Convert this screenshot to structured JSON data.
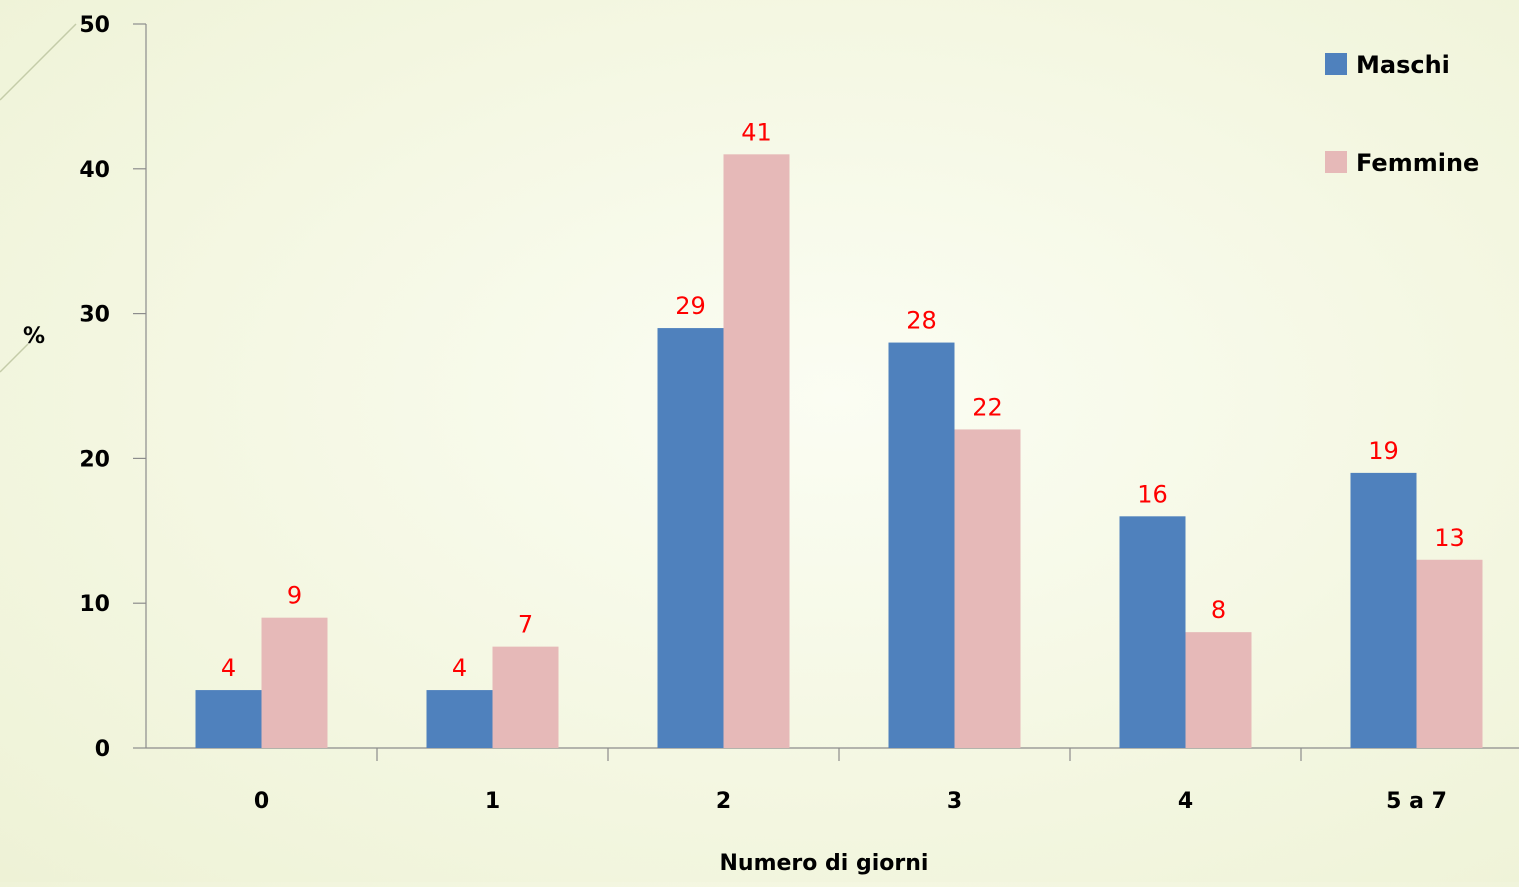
{
  "chart_data": {
    "type": "bar",
    "categories": [
      "0",
      "1",
      "2",
      "3",
      "4",
      "5 a 7"
    ],
    "series": [
      {
        "name": "Maschi",
        "values": [
          4,
          4,
          29,
          28,
          16,
          19
        ],
        "color": "#4f81bd"
      },
      {
        "name": "Femmine",
        "values": [
          9,
          7,
          41,
          22,
          8,
          13
        ],
        "color": "#e6b9b8"
      }
    ],
    "xlabel": "Numero di giorni",
    "ylabel": "%",
    "ylim": [
      0,
      50
    ],
    "yticks": [
      "0",
      "10",
      "20",
      "30",
      "40",
      "50"
    ],
    "data_label_color": "#ff0000",
    "grid": false,
    "legend_position": "top-right"
  }
}
